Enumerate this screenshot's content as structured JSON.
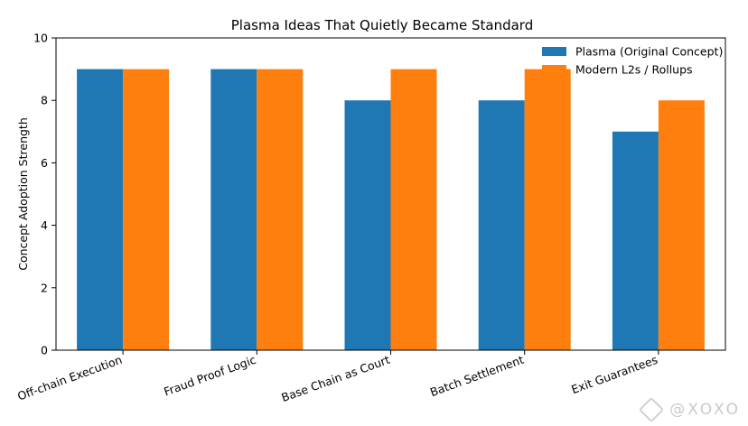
{
  "chart_data": {
    "type": "bar",
    "title": "Plasma Ideas That Quietly Became Standard",
    "xlabel": "",
    "ylabel": "Concept Adoption Strength",
    "ylim": [
      0,
      10
    ],
    "yticks": [
      0,
      2,
      4,
      6,
      8,
      10
    ],
    "categories": [
      "Off-chain Execution",
      "Fraud Proof Logic",
      "Base Chain as Court",
      "Batch Settlement",
      "Exit Guarantees"
    ],
    "series": [
      {
        "name": "Plasma (Original Concept)",
        "values": [
          9,
          9,
          8,
          8,
          7
        ],
        "color": "#1f77b4"
      },
      {
        "name": "Modern L2s / Rollups",
        "values": [
          9,
          9,
          9,
          9,
          8
        ],
        "color": "#ff7f0e"
      }
    ],
    "legend": "top-right",
    "grid": false
  },
  "watermark": {
    "text": "@XOXO"
  }
}
